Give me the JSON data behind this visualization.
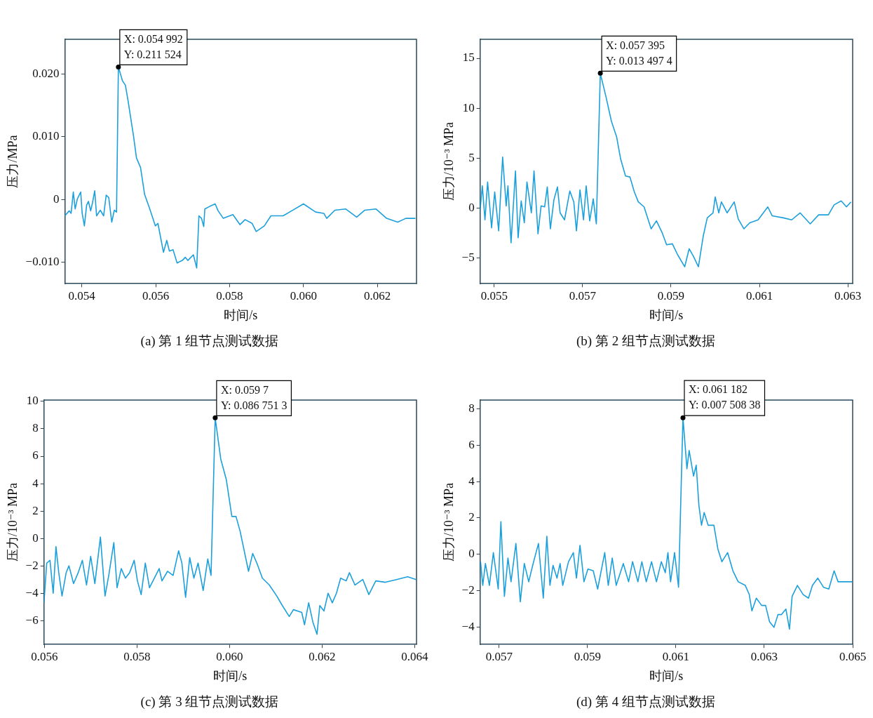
{
  "chart_data": [
    {
      "type": "line",
      "title": "(a) 第 1 组节点测试数据",
      "xlabel": "时间/s",
      "ylabel": "压力/MPa",
      "color": "#1ca0dc",
      "xlim": [
        0.05354,
        0.06306
      ],
      "ylim": [
        -0.0134,
        0.0255
      ],
      "xticks": [
        0.054,
        0.056,
        0.058,
        {
          "value": 0.06,
          "label": "0.060"
        },
        0.062
      ],
      "yticks": [
        {
          "value": -0.01,
          "label": "−0.010"
        },
        0,
        {
          "value": 0.01,
          "label": "0.010"
        },
        {
          "value": 0.02,
          "label": "0.020"
        }
      ],
      "annotations": [
        {
          "text": "X: 0.054 992\nY: 0.211 524",
          "x": 0.05499,
          "y": 0.0211
        }
      ],
      "x": [
        0.05354,
        0.05366,
        0.05371,
        0.05377,
        0.05382,
        0.05388,
        0.05397,
        0.05401,
        0.05407,
        0.05413,
        0.05418,
        0.05424,
        0.05429,
        0.05435,
        0.0544,
        0.0545,
        0.05459,
        0.05466,
        0.05473,
        0.05481,
        0.05488,
        0.05494,
        0.05499,
        0.0551,
        0.05518,
        0.05525,
        0.0554,
        0.05548,
        0.05559,
        0.0557,
        0.05584,
        0.05599,
        0.05606,
        0.05621,
        0.0563,
        0.05637,
        0.05647,
        0.05658,
        0.05672,
        0.0568,
        0.05687,
        0.05702,
        0.05711,
        0.05717,
        0.05724,
        0.0573,
        0.05733,
        0.05746,
        0.05761,
        0.05769,
        0.05783,
        0.05809,
        0.05828,
        0.05842,
        0.05861,
        0.05872,
        0.05894,
        0.05912,
        0.05945,
        0.05968,
        0.06,
        0.06033,
        0.06055,
        0.06063,
        0.06085,
        0.06114,
        0.06144,
        0.06166,
        0.06196,
        0.06225,
        0.06255,
        0.06277,
        0.06303
      ],
      "values": [
        -0.0026,
        -0.0018,
        -0.0022,
        0.0012,
        -0.0015,
        0.0001,
        0.0012,
        -0.0022,
        -0.0042,
        -0.0009,
        -0.0003,
        -0.0018,
        -0.0005,
        0.0014,
        -0.0026,
        -0.0017,
        -0.0026,
        0.0007,
        0.0003,
        -0.0036,
        -0.0017,
        -0.002,
        0.0211,
        0.0189,
        0.0182,
        0.0158,
        0.0101,
        0.0066,
        0.0051,
        0.0008,
        -0.0015,
        -0.0042,
        -0.0038,
        -0.0084,
        -0.0065,
        -0.0082,
        -0.008,
        -0.0101,
        -0.0097,
        -0.0092,
        -0.0097,
        -0.0088,
        -0.0109,
        -0.0026,
        -0.003,
        -0.0043,
        -0.0015,
        -0.0011,
        -0.0007,
        -0.0018,
        -0.003,
        -0.0024,
        -0.004,
        -0.0032,
        -0.0038,
        -0.0051,
        -0.0042,
        -0.0026,
        -0.0026,
        -0.0018,
        -0.0007,
        -0.002,
        -0.0022,
        -0.003,
        -0.0017,
        -0.0015,
        -0.0028,
        -0.0017,
        -0.0015,
        -0.003,
        -0.0036,
        -0.003,
        -0.003
      ]
    },
    {
      "type": "line",
      "title": "(b) 第 2 组节点测试数据",
      "xlabel": "时间/s",
      "ylabel": "压力/10⁻³ MPa",
      "color": "#1ca0dc",
      "xlim": [
        0.05468,
        0.06311
      ],
      "ylim": [
        -7.6,
        16.9
      ],
      "xticks": [
        0.055,
        0.057,
        0.059,
        0.061,
        0.063
      ],
      "yticks": [
        {
          "value": -5,
          "label": "−5"
        },
        0,
        5,
        10,
        15
      ],
      "annotations": [
        {
          "text": "X: 0.057 395\nY: 0.013 497 4",
          "x": 0.0574,
          "y": 13.5
        }
      ],
      "x": [
        0.05468,
        0.05473,
        0.05479,
        0.05485,
        0.05494,
        0.05501,
        0.0551,
        0.05519,
        0.05527,
        0.05531,
        0.05538,
        0.05548,
        0.05554,
        0.05561,
        0.05568,
        0.05574,
        0.05584,
        0.0559,
        0.05599,
        0.05606,
        0.05614,
        0.0562,
        0.05627,
        0.05635,
        0.05643,
        0.05649,
        0.05659,
        0.05671,
        0.0568,
        0.05686,
        0.05694,
        0.05702,
        0.05708,
        0.05716,
        0.05724,
        0.05731,
        0.0574,
        0.05753,
        0.05765,
        0.05777,
        0.05786,
        0.05797,
        0.05807,
        0.05817,
        0.05826,
        0.05839,
        0.05855,
        0.05867,
        0.0588,
        0.0589,
        0.05903,
        0.05915,
        0.05931,
        0.05941,
        0.0595,
        0.05962,
        0.05973,
        0.05982,
        0.05995,
        0.06,
        0.06008,
        0.06014,
        0.06027,
        0.06043,
        0.06052,
        0.06065,
        0.06078,
        0.06097,
        0.06119,
        0.06129,
        0.06154,
        0.06173,
        0.06192,
        0.06215,
        0.06234,
        0.06256,
        0.06269,
        0.06285,
        0.06297,
        0.06307
      ],
      "values": [
        -0.2,
        2.2,
        -1.2,
        2.6,
        -2,
        1.6,
        -2.3,
        5.1,
        0.2,
        2.2,
        -3.5,
        3.7,
        -3,
        0.7,
        -1.5,
        2.6,
        -0.5,
        3.7,
        -2.6,
        0.2,
        0.1,
        2.1,
        -2.1,
        0.8,
        2.1,
        -0.5,
        -1.2,
        1.7,
        0.6,
        -2.3,
        1.8,
        -1.2,
        2.2,
        -1.3,
        0.9,
        -1.6,
        13.5,
        11.1,
        8.7,
        7.1,
        4.9,
        3.2,
        3.1,
        1.6,
        0.6,
        0.1,
        -2.1,
        -1.3,
        -2.5,
        -3.7,
        -3.6,
        -4.7,
        -5.9,
        -4.1,
        -4.8,
        -5.9,
        -2.8,
        -1,
        -0.5,
        1.1,
        -0.5,
        0.6,
        -0.5,
        0.6,
        -1.1,
        -2.1,
        -1.5,
        -1.2,
        0.1,
        -0.8,
        -1,
        -1.2,
        -0.5,
        -1.6,
        -0.7,
        -0.7,
        0.3,
        0.7,
        0.1,
        0.6
      ]
    },
    {
      "type": "line",
      "title": "(c) 第 3 组节点测试数据",
      "xlabel": "时间/s",
      "ylabel": "压力/10⁻³ MPa",
      "color": "#1ca0dc",
      "xlim": [
        0.05599,
        0.06404
      ],
      "ylim": [
        -7.74,
        10.1
      ],
      "xticks": [
        0.056,
        0.058,
        {
          "value": 0.06,
          "label": "0.060"
        },
        0.062,
        0.064
      ],
      "yticks": [
        {
          "value": -6,
          "label": "−6"
        },
        {
          "value": -4,
          "label": "−4"
        },
        {
          "value": -2,
          "label": "−2"
        },
        0,
        2,
        4,
        6,
        8,
        10
      ],
      "annotations": [
        {
          "text": "X: 0.059 7\nY: 0.086 751 3",
          "x": 0.05969,
          "y": 8.8
        }
      ],
      "x": [
        0.05599,
        0.05605,
        0.05612,
        0.05619,
        0.05625,
        0.05631,
        0.05638,
        0.05647,
        0.05653,
        0.05663,
        0.05673,
        0.05682,
        0.05691,
        0.057,
        0.05709,
        0.05721,
        0.05731,
        0.05739,
        0.0575,
        0.05757,
        0.05766,
        0.05775,
        0.05784,
        0.05794,
        0.05801,
        0.05809,
        0.05818,
        0.05827,
        0.05839,
        0.05848,
        0.05854,
        0.05866,
        0.05878,
        0.0589,
        0.05897,
        0.05905,
        0.05914,
        0.05923,
        0.05932,
        0.05943,
        0.05953,
        0.0596,
        0.05969,
        0.05981,
        0.05993,
        0.06005,
        0.06014,
        0.06023,
        0.06041,
        0.0605,
        0.06059,
        0.06071,
        0.06086,
        0.06102,
        0.06114,
        0.06129,
        0.06138,
        0.06156,
        0.06162,
        0.06171,
        0.0618,
        0.06189,
        0.06195,
        0.06204,
        0.06213,
        0.06222,
        0.06231,
        0.0624,
        0.06252,
        0.06259,
        0.06271,
        0.06288,
        0.06301,
        0.06316,
        0.06337,
        0.06361,
        0.06385,
        0.06403
      ],
      "values": [
        -4.7,
        -1.8,
        -1.6,
        -4,
        -0.6,
        -2.5,
        -4.2,
        -2.5,
        -2,
        -3.3,
        -2.5,
        -1.6,
        -3.4,
        -1.3,
        -3.3,
        0.1,
        -4.2,
        -2.7,
        -0.3,
        -3.6,
        -2.2,
        -2.9,
        -2.5,
        -1.6,
        -3.1,
        -4.1,
        -1.8,
        -3.6,
        -2.8,
        -2.2,
        -3.1,
        -2.4,
        -2.7,
        -0.9,
        -1.8,
        -4.3,
        -1.4,
        -2.9,
        -1.8,
        -3.8,
        -1.5,
        -2.7,
        8.8,
        5.8,
        4.3,
        1.6,
        1.6,
        0.5,
        -2.4,
        -1.1,
        -1.8,
        -2.9,
        -3.4,
        -4.2,
        -4.9,
        -5.7,
        -5.2,
        -5.4,
        -6.3,
        -4.7,
        -6.1,
        -7,
        -4.9,
        -5.3,
        -4,
        -4.7,
        -4,
        -2.9,
        -3.1,
        -2.5,
        -3.4,
        -3,
        -4.1,
        -3.1,
        -3.2,
        -3,
        -2.8,
        -3
      ]
    },
    {
      "type": "line",
      "title": "(d) 第 4 组节点测试数据",
      "xlabel": "时间/s",
      "ylabel": "压力/10⁻³ MPa",
      "color": "#1ca0dc",
      "xlim": [
        0.05657,
        0.065
      ],
      "ylim": [
        -4.94,
        8.47
      ],
      "xticks": [
        0.057,
        0.059,
        0.061,
        0.063,
        0.065
      ],
      "yticks": [
        {
          "value": -4,
          "label": "−4"
        },
        {
          "value": -2,
          "label": "−2"
        },
        0,
        2,
        4,
        6,
        8
      ],
      "annotations": [
        {
          "text": "X: 0.061 182\nY: 0.007 508 38",
          "x": 0.06116,
          "y": 7.5
        }
      ],
      "x": [
        0.05658,
        0.05663,
        0.05669,
        0.05678,
        0.05687,
        0.05698,
        0.05704,
        0.05712,
        0.0572,
        0.05727,
        0.05738,
        0.05748,
        0.05757,
        0.05767,
        0.05776,
        0.05789,
        0.058,
        0.05808,
        0.05815,
        0.05822,
        0.05831,
        0.05838,
        0.05844,
        0.05857,
        0.05868,
        0.05875,
        0.05883,
        0.05892,
        0.05901,
        0.05913,
        0.05923,
        0.05939,
        0.05947,
        0.05956,
        0.05965,
        0.05981,
        0.05993,
        0.06002,
        0.06014,
        0.06023,
        0.06033,
        0.06045,
        0.06056,
        0.06067,
        0.06076,
        0.06082,
        0.06088,
        0.06097,
        0.06106,
        0.06116,
        0.06125,
        0.0613,
        0.0614,
        0.06146,
        0.06152,
        0.06158,
        0.06164,
        0.06173,
        0.06186,
        0.06195,
        0.06204,
        0.06217,
        0.06229,
        0.06241,
        0.06257,
        0.06266,
        0.06272,
        0.06282,
        0.06294,
        0.06303,
        0.06312,
        0.06322,
        0.06331,
        0.06339,
        0.06349,
        0.06357,
        0.06363,
        0.06375,
        0.06388,
        0.064,
        0.06409,
        0.06421,
        0.06434,
        0.06446,
        0.06458,
        0.06467,
        0.06499
      ],
      "values": [
        -0.4,
        -1.7,
        -0.5,
        -1.7,
        0.1,
        -1.9,
        1.8,
        -2.3,
        -0.2,
        -1.5,
        0.6,
        -2.6,
        -0.5,
        -1.5,
        -0.6,
        0.6,
        -2.4,
        1,
        -1.7,
        -0.6,
        -1.3,
        -0.5,
        -1.7,
        -0.4,
        0.1,
        -1.3,
        0.5,
        -1.5,
        -0.8,
        -0.9,
        -1.9,
        0.1,
        -1.7,
        -0.2,
        -1.7,
        -0.5,
        -1.5,
        -0.4,
        -1.5,
        -0.4,
        -1.5,
        -0.4,
        -1.5,
        -0.4,
        -1,
        0.1,
        -1.5,
        0.1,
        -1.8,
        7.5,
        4.7,
        5.7,
        4.3,
        4.9,
        2.7,
        1.6,
        2.3,
        1.6,
        1.6,
        0.3,
        -0.4,
        0.1,
        -0.9,
        -1.5,
        -1.7,
        -2.2,
        -3.1,
        -2.4,
        -2.8,
        -2.8,
        -3.7,
        -4,
        -3.3,
        -3.3,
        -3,
        -4.1,
        -2.3,
        -1.7,
        -2.2,
        -2.4,
        -1.7,
        -1.3,
        -1.8,
        -1.9,
        -0.9,
        -1.5,
        -1.5
      ]
    }
  ]
}
